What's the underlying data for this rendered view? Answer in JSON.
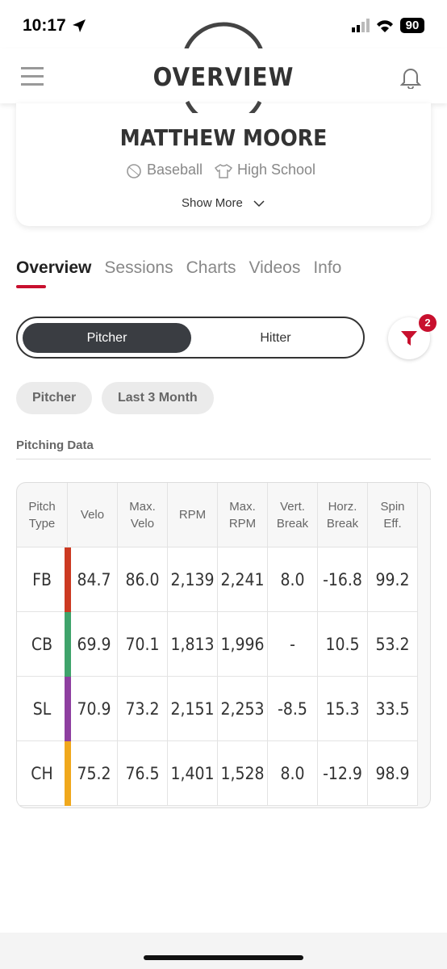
{
  "status": {
    "time": "10:17",
    "battery": "90"
  },
  "header": {
    "title": "OVERVIEW"
  },
  "profile": {
    "name": "MATTHEW MOORE",
    "sport": "Baseball",
    "level": "High School",
    "show_more": "Show More"
  },
  "tabs": [
    "Overview",
    "Sessions",
    "Charts",
    "Videos",
    "Info"
  ],
  "toggle": [
    "Pitcher",
    "Hitter"
  ],
  "filter_count": 2,
  "chips": [
    "Pitcher",
    "Last 3 Month"
  ],
  "section_title": "Pitching Data",
  "table": {
    "columns": [
      "Pitch Type",
      "Velo",
      "Max. Velo",
      "RPM",
      "Max. RPM",
      "Vert. Break",
      "Horz. Break",
      "Spin Eff."
    ],
    "rows": [
      {
        "pitch": "FB",
        "color": "#cc3a22",
        "values": [
          "84.7",
          "86.0",
          "2,139",
          "2,241",
          "8.0",
          "-16.8",
          "99.2"
        ]
      },
      {
        "pitch": "CB",
        "color": "#3fa36b",
        "values": [
          "69.9",
          "70.1",
          "1,813",
          "1,996",
          "-",
          "10.5",
          "53.2"
        ]
      },
      {
        "pitch": "SL",
        "color": "#8e3fa0",
        "values": [
          "70.9",
          "73.2",
          "2,151",
          "2,253",
          "-8.5",
          "15.3",
          "33.5"
        ]
      },
      {
        "pitch": "CH",
        "color": "#f0a81c",
        "values": [
          "75.2",
          "76.5",
          "1,401",
          "1,528",
          "8.0",
          "-12.9",
          "98.9"
        ]
      }
    ]
  }
}
